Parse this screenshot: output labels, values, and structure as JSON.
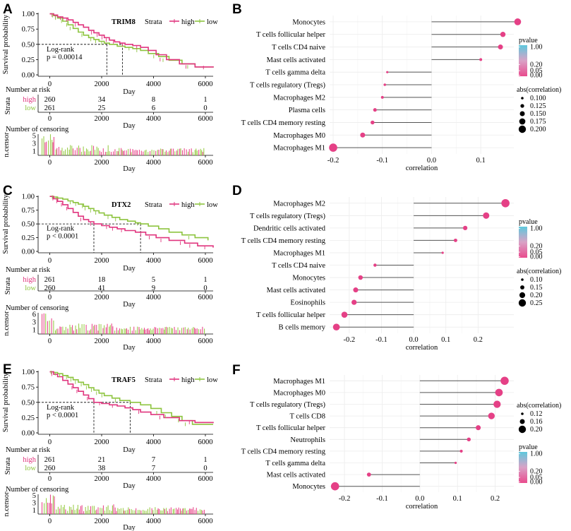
{
  "colors": {
    "high": "#e0357e",
    "low": "#8dc43f",
    "censor_high": "#e94b8d",
    "censor_low": "#9ccd4d",
    "lollipop_line": "#555555",
    "grid": "#ececec",
    "pval_top": "#5ec8dd",
    "pval_bottom": "#e94b8d"
  },
  "km_panels": [
    {
      "panel_label": "A",
      "gene": "TRIM8",
      "strata_title": "Strata",
      "legend_high": "high",
      "legend_low": "low",
      "ylabel": "Survival probability",
      "xlabel": "Day",
      "y_ticks": [
        "1.00",
        "0.75",
        "0.50",
        "0.25",
        "0.00"
      ],
      "x_ticks": [
        "0",
        "2000",
        "4000",
        "6000"
      ],
      "logrank_line1": "Log-rank",
      "logrank_line2": "p = 0.00014",
      "risk_title": "Number at risk",
      "risk_strata_label": "Strata",
      "risk_high": [
        "260",
        "34",
        "8",
        "1"
      ],
      "risk_low": [
        "261",
        "25",
        "6",
        "0"
      ],
      "censor_title": "Number of censoring",
      "censor_ylabel": "n.censor",
      "censor_ticks": [
        "5",
        "3",
        "1"
      ],
      "median_high": 2800,
      "median_low": 2200,
      "high_curve": [
        [
          0,
          1.0
        ],
        [
          150,
          0.98
        ],
        [
          300,
          0.95
        ],
        [
          500,
          0.93
        ],
        [
          700,
          0.9
        ],
        [
          900,
          0.86
        ],
        [
          1100,
          0.82
        ],
        [
          1300,
          0.78
        ],
        [
          1500,
          0.73
        ],
        [
          1700,
          0.69
        ],
        [
          1900,
          0.65
        ],
        [
          2100,
          0.61
        ],
        [
          2300,
          0.57
        ],
        [
          2500,
          0.54
        ],
        [
          2700,
          0.52
        ],
        [
          2900,
          0.5
        ],
        [
          3200,
          0.48
        ],
        [
          3500,
          0.45
        ],
        [
          3800,
          0.4
        ],
        [
          4100,
          0.33
        ],
        [
          4500,
          0.25
        ],
        [
          5000,
          0.18
        ],
        [
          5600,
          0.13
        ],
        [
          6300,
          0.12
        ]
      ],
      "low_curve": [
        [
          0,
          1.0
        ],
        [
          150,
          0.97
        ],
        [
          300,
          0.93
        ],
        [
          500,
          0.88
        ],
        [
          700,
          0.82
        ],
        [
          900,
          0.76
        ],
        [
          1100,
          0.7
        ],
        [
          1300,
          0.65
        ],
        [
          1500,
          0.61
        ],
        [
          1700,
          0.58
        ],
        [
          1900,
          0.55
        ],
        [
          2100,
          0.52
        ],
        [
          2300,
          0.5
        ],
        [
          2600,
          0.47
        ],
        [
          2900,
          0.45
        ],
        [
          3200,
          0.43
        ],
        [
          3500,
          0.4
        ],
        [
          3800,
          0.35
        ],
        [
          4200,
          0.3
        ],
        [
          4600,
          0.24
        ],
        [
          5100,
          0.18
        ],
        [
          5600,
          0.13
        ],
        [
          6300,
          0.12
        ]
      ]
    },
    {
      "panel_label": "C",
      "gene": "DTX2",
      "strata_title": "Strata",
      "legend_high": "high",
      "legend_low": "low",
      "ylabel": "Survival probability",
      "xlabel": "Day",
      "y_ticks": [
        "1.00",
        "0.75",
        "0.50",
        "0.25",
        "0.00"
      ],
      "x_ticks": [
        "0",
        "2000",
        "4000",
        "6000"
      ],
      "logrank_line1": "Log-rank",
      "logrank_line2": "p < 0.0001",
      "risk_title": "Number at risk",
      "risk_strata_label": "Strata",
      "risk_high": [
        "261",
        "18",
        "5",
        "1"
      ],
      "risk_low": [
        "260",
        "41",
        "9",
        "0"
      ],
      "censor_title": "Number of censoring",
      "censor_ylabel": "n.censor",
      "censor_ticks": [
        "6",
        "3",
        "1"
      ],
      "median_high": 1700,
      "median_low": 3500,
      "high_curve": [
        [
          0,
          1.0
        ],
        [
          150,
          0.96
        ],
        [
          300,
          0.91
        ],
        [
          500,
          0.85
        ],
        [
          700,
          0.78
        ],
        [
          900,
          0.71
        ],
        [
          1100,
          0.64
        ],
        [
          1300,
          0.58
        ],
        [
          1500,
          0.54
        ],
        [
          1700,
          0.5
        ],
        [
          2000,
          0.47
        ],
        [
          2300,
          0.44
        ],
        [
          2600,
          0.41
        ],
        [
          2900,
          0.38
        ],
        [
          3300,
          0.35
        ],
        [
          3700,
          0.3
        ],
        [
          4100,
          0.25
        ],
        [
          4600,
          0.2
        ],
        [
          5200,
          0.15
        ],
        [
          5700,
          0.1
        ],
        [
          6300,
          0.07
        ]
      ],
      "low_curve": [
        [
          0,
          1.0
        ],
        [
          150,
          0.99
        ],
        [
          300,
          0.97
        ],
        [
          500,
          0.95
        ],
        [
          700,
          0.92
        ],
        [
          900,
          0.89
        ],
        [
          1100,
          0.86
        ],
        [
          1300,
          0.82
        ],
        [
          1500,
          0.78
        ],
        [
          1700,
          0.74
        ],
        [
          1900,
          0.7
        ],
        [
          2100,
          0.66
        ],
        [
          2400,
          0.62
        ],
        [
          2700,
          0.58
        ],
        [
          3000,
          0.55
        ],
        [
          3300,
          0.52
        ],
        [
          3500,
          0.5
        ],
        [
          3800,
          0.46
        ],
        [
          4200,
          0.41
        ],
        [
          4600,
          0.35
        ],
        [
          5100,
          0.3
        ],
        [
          5600,
          0.25
        ],
        [
          6100,
          0.2
        ]
      ]
    },
    {
      "panel_label": "E",
      "gene": "TRAF5",
      "strata_title": "Strata",
      "legend_high": "high",
      "legend_low": "low",
      "ylabel": "Survival probability",
      "xlabel": "Day",
      "y_ticks": [
        "1.00",
        "0.75",
        "0.50",
        "0.25",
        "0.00"
      ],
      "x_ticks": [
        "0",
        "2000",
        "4000",
        "6000"
      ],
      "logrank_line1": "Log-rank",
      "logrank_line2": "p < 0.0001",
      "risk_title": "Number at risk",
      "risk_strata_label": "Strata",
      "risk_high": [
        "261",
        "21",
        "7",
        "1"
      ],
      "risk_low": [
        "260",
        "38",
        "7",
        "0"
      ],
      "censor_title": "Number of censoring",
      "censor_ylabel": "n.censor",
      "censor_ticks": [
        "5",
        "3",
        "1"
      ],
      "median_high": 1700,
      "median_low": 3100,
      "high_curve": [
        [
          0,
          1.0
        ],
        [
          150,
          0.96
        ],
        [
          300,
          0.92
        ],
        [
          500,
          0.86
        ],
        [
          700,
          0.8
        ],
        [
          900,
          0.74
        ],
        [
          1100,
          0.68
        ],
        [
          1300,
          0.62
        ],
        [
          1500,
          0.56
        ],
        [
          1700,
          0.5
        ],
        [
          2000,
          0.48
        ],
        [
          2300,
          0.46
        ],
        [
          2600,
          0.44
        ],
        [
          2900,
          0.41
        ],
        [
          3200,
          0.38
        ],
        [
          3500,
          0.34
        ],
        [
          3900,
          0.3
        ],
        [
          4400,
          0.25
        ],
        [
          5000,
          0.2
        ],
        [
          5600,
          0.17
        ],
        [
          6300,
          0.16
        ]
      ],
      "low_curve": [
        [
          0,
          1.0
        ],
        [
          150,
          0.99
        ],
        [
          300,
          0.97
        ],
        [
          500,
          0.94
        ],
        [
          700,
          0.91
        ],
        [
          900,
          0.87
        ],
        [
          1100,
          0.83
        ],
        [
          1300,
          0.79
        ],
        [
          1500,
          0.74
        ],
        [
          1700,
          0.7
        ],
        [
          1900,
          0.65
        ],
        [
          2100,
          0.61
        ],
        [
          2400,
          0.57
        ],
        [
          2700,
          0.53
        ],
        [
          3100,
          0.5
        ],
        [
          3500,
          0.46
        ],
        [
          3900,
          0.4
        ],
        [
          4300,
          0.33
        ],
        [
          4700,
          0.27
        ],
        [
          5100,
          0.2
        ],
        [
          5500,
          0.14
        ],
        [
          6300,
          0.14
        ]
      ]
    }
  ],
  "chart_data": [
    {
      "type": "lollipop",
      "panel_label": "B",
      "xlabel": "correlation",
      "xlim": [
        -0.2,
        0.16
      ],
      "x_ticks": [
        -0.2,
        -0.1,
        0.0,
        0.1
      ],
      "x_tick_labels": [
        "-0.2",
        "-0.1",
        "0.0",
        "0.1"
      ],
      "categories": [
        "Monocytes",
        "T cells follicular helper",
        "T cells CD4 naive",
        "Mast cells activated",
        "T cells gamma delta",
        "T cells regulatory (Tregs)",
        "Macrophages M2",
        "Plasma cells",
        "T cells CD4 memory resting",
        "Macrophages M0",
        "Macrophages M1"
      ],
      "values": [
        0.175,
        0.145,
        0.14,
        0.1,
        -0.09,
        -0.095,
        -0.1,
        -0.115,
        -0.12,
        -0.14,
        -0.2
      ],
      "pvalue_legend_title": "pvalue",
      "pvalue_legend_labels": [
        "1.00",
        "0.20",
        "0.05",
        "0.00"
      ],
      "size_legend_title": "abs(correlation)",
      "size_legend_labels": [
        "0.100",
        "0.125",
        "0.150",
        "0.175",
        "0.200"
      ],
      "legend_order": "pvalue-first"
    },
    {
      "type": "lollipop",
      "panel_label": "D",
      "xlabel": "correlation",
      "xlim": [
        -0.25,
        0.3
      ],
      "x_ticks": [
        -0.2,
        -0.1,
        0.0,
        0.1,
        0.2
      ],
      "x_tick_labels": [
        "-0.2",
        "-0.1",
        "0.0",
        "0.1",
        "0.2"
      ],
      "categories": [
        "Macrophages M2",
        "T cells regulatory (Tregs)",
        "Dendritic cells activated",
        "T cells CD4 memory resting",
        "Macrophages M1",
        "T cells CD4 naive",
        "Monocytes",
        "Mast cells activated",
        "Eosinophils",
        "T cells follicular helper",
        "B cells memory"
      ],
      "values": [
        0.285,
        0.225,
        0.16,
        0.13,
        0.09,
        -0.12,
        -0.165,
        -0.18,
        -0.185,
        -0.215,
        -0.24
      ],
      "pvalue_legend_title": "pvalue",
      "pvalue_legend_labels": [
        "1.00",
        "0.20",
        "0.05",
        "0.00"
      ],
      "size_legend_title": "abs(correlation)",
      "size_legend_labels": [
        "0.10",
        "0.15",
        "0.20",
        "0.25"
      ],
      "legend_order": "pvalue-first"
    },
    {
      "type": "lollipop",
      "panel_label": "F",
      "xlabel": "correlation",
      "xlim": [
        -0.23,
        0.24
      ],
      "x_ticks": [
        -0.2,
        -0.1,
        0.0,
        0.1,
        0.2
      ],
      "x_tick_labels": [
        "-0.2",
        "-0.1",
        "0.0",
        "0.1",
        "0.2"
      ],
      "categories": [
        "Macrophages M1",
        "Macrophages M0",
        "T cells regulatory (Tregs)",
        "T cells CD8",
        "T cells follicular helper",
        "Neutrophils",
        "T cells CD4 memory resting",
        "T cells gamma delta",
        "Mast cells activated",
        "Monocytes"
      ],
      "values": [
        0.225,
        0.21,
        0.205,
        0.19,
        0.155,
        0.13,
        0.11,
        0.095,
        -0.135,
        -0.225
      ],
      "pvalue_legend_title": "pvalue",
      "pvalue_legend_labels": [
        "1.00",
        "0.20",
        "0.05",
        "0.00"
      ],
      "size_legend_title": "abs(correlation)",
      "size_legend_labels": [
        "0.12",
        "0.16",
        "0.20"
      ],
      "legend_order": "size-first"
    }
  ]
}
